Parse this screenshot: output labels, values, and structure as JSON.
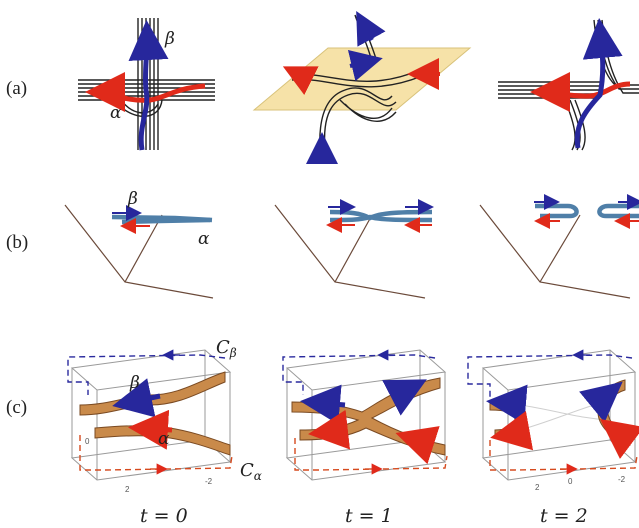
{
  "row_labels": {
    "a": "(a)",
    "b": "(b)",
    "c": "(c)"
  },
  "greek": {
    "alpha": "α",
    "beta": "β"
  },
  "curve_labels": {
    "c_letter": "C",
    "beta_sub": "β",
    "alpha_sub": "α"
  },
  "time_labels": [
    "t = 0",
    "t = 1",
    "t = 2"
  ],
  "ticks": [
    "0",
    "2",
    "-2"
  ],
  "colors": {
    "red": "#e02a1a",
    "blue": "#27279c",
    "tube": "#4f7fa8",
    "surface": "#c98a4a",
    "plane": "#f6e2a8"
  }
}
